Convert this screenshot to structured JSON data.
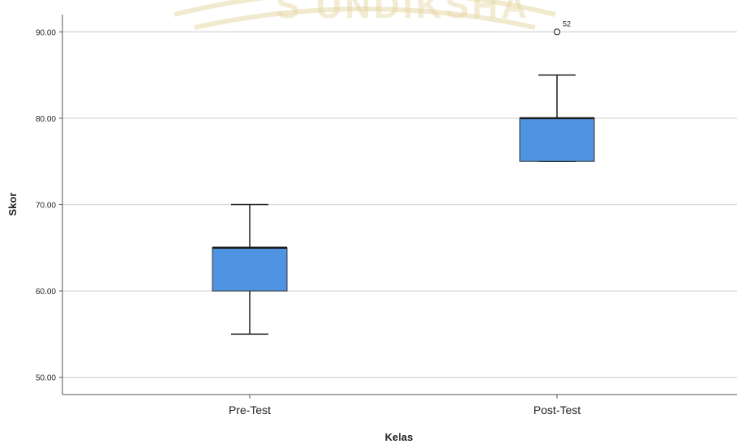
{
  "chart_data": {
    "type": "boxplot",
    "xlabel": "Kelas",
    "ylabel": "Skor",
    "categories": [
      "Pre-Test",
      "Post-Test"
    ],
    "yticks": [
      "50.00",
      "60.00",
      "70.00",
      "80.00",
      "90.00"
    ],
    "ylim": [
      48,
      92
    ],
    "grid": true,
    "boxes": [
      {
        "category": "Pre-Test",
        "whisker_low": 55,
        "q1": 60,
        "median": 65,
        "q3": 65,
        "whisker_high": 70,
        "outliers": []
      },
      {
        "category": "Post-Test",
        "whisker_low": 75,
        "q1": 75,
        "median": 80,
        "q3": 80,
        "whisker_high": 85,
        "outliers": [
          {
            "value": 90,
            "label": "52"
          }
        ]
      }
    ],
    "colors": {
      "box_fill": "#4f94e3",
      "box_stroke": "#1a1a1a",
      "grid": "#d9d9d9",
      "axis": "#555555",
      "text": "#222222"
    }
  }
}
